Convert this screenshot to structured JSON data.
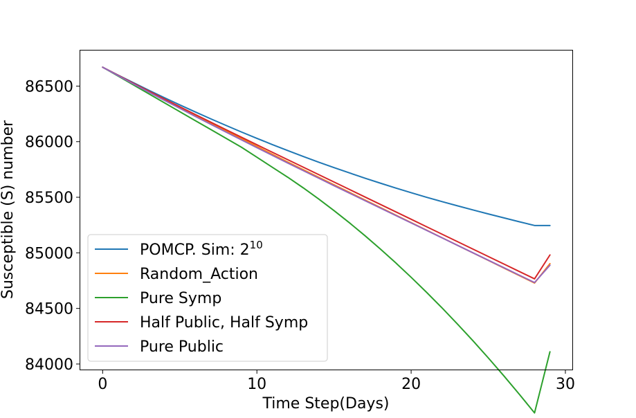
{
  "chart_data": {
    "type": "line",
    "title": "",
    "xlabel": "Time Step(Days)",
    "ylabel": "Susceptible (S) number",
    "xlim": [
      -1.45,
      30.45
    ],
    "ylim": [
      83950,
      86820
    ],
    "xticks": [
      0,
      10,
      20,
      30
    ],
    "yticks": [
      84000,
      84500,
      85000,
      85500,
      86000,
      86500
    ],
    "grid": false,
    "legend_position": "lower-left",
    "x": [
      0,
      1,
      2,
      3,
      4,
      5,
      6,
      7,
      8,
      9,
      10,
      11,
      12,
      13,
      14,
      15,
      16,
      17,
      18,
      19,
      20,
      21,
      22,
      23,
      24,
      25,
      26,
      27,
      28,
      29
    ],
    "series": [
      {
        "name": "POMCP. Sim: 2^10",
        "legend_base": "POMCP. Sim: 2",
        "legend_sup": "10",
        "color": "#1f77b4",
        "values": [
          86670,
          86599,
          86530,
          86462,
          86396,
          86331,
          86268,
          86206,
          86146,
          86087,
          86030,
          85974,
          85920,
          85867,
          85816,
          85767,
          85719,
          85672,
          85627,
          85583,
          85541,
          85500,
          85461,
          85423,
          85386,
          85350,
          85315,
          85280,
          85246,
          85246
        ]
      },
      {
        "name": "Random_Action",
        "color": "#ff7f0e",
        "values": [
          86670,
          86596,
          86523,
          86451,
          86379,
          86308,
          86237,
          86167,
          86097,
          86027,
          85957,
          85887,
          85817,
          85748,
          85680,
          85612,
          85544,
          85476,
          85408,
          85340,
          85272,
          85204,
          85136,
          85068,
          85000,
          84932,
          84864,
          84796,
          84728,
          84903
        ]
      },
      {
        "name": "Pure Symp",
        "color": "#2ca02c",
        "values": [
          86670,
          86590,
          86510,
          86430,
          86350,
          86270,
          86190,
          86110,
          86030,
          85950,
          85860,
          85770,
          85680,
          85585,
          85485,
          85380,
          85270,
          85155,
          85035,
          84910,
          84780,
          84645,
          84505,
          84360,
          84210,
          84055,
          83895,
          83730,
          83560,
          84110
        ]
      },
      {
        "name": "Half Public, Half Symp",
        "color": "#d62728",
        "values": [
          86670,
          86597,
          86525,
          86454,
          86384,
          86314,
          86245,
          86176,
          86108,
          86040,
          85972,
          85905,
          85838,
          85771,
          85704,
          85637,
          85570,
          85503,
          85436,
          85369,
          85302,
          85235,
          85168,
          85101,
          85034,
          84967,
          84900,
          84833,
          84766,
          84981
        ]
      },
      {
        "name": "Pure Public",
        "color": "#9467bd",
        "values": [
          86670,
          86594,
          86519,
          86445,
          86372,
          86300,
          86228,
          86157,
          86086,
          86016,
          85946,
          85877,
          85808,
          85740,
          85672,
          85604,
          85537,
          85470,
          85403,
          85336,
          85269,
          85202,
          85135,
          85068,
          85001,
          84934,
          84867,
          84800,
          84733,
          84889
        ]
      }
    ]
  }
}
